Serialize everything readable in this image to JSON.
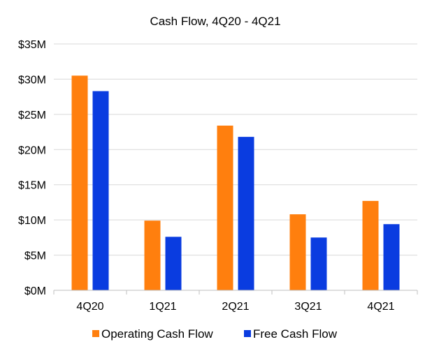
{
  "chart_data": {
    "type": "bar",
    "title": "Cash Flow, 4Q20 - 4Q21",
    "xlabel": "",
    "ylabel": "",
    "categories": [
      "4Q20",
      "1Q21",
      "2Q21",
      "3Q21",
      "4Q21"
    ],
    "series": [
      {
        "name": "Operating Cash Flow",
        "color": "#ff7f0e",
        "values": [
          30.5,
          9.9,
          23.4,
          10.8,
          12.7
        ]
      },
      {
        "name": "Free Cash Flow",
        "color": "#0a3ce0",
        "values": [
          28.3,
          7.6,
          21.8,
          7.5,
          9.4
        ]
      }
    ],
    "ylim": [
      0,
      35
    ],
    "yticks": [
      0,
      5,
      10,
      15,
      20,
      25,
      30,
      35
    ],
    "ytick_labels": [
      "$0M",
      "$5M",
      "$10M",
      "$15M",
      "$20M",
      "$25M",
      "$30M",
      "$35M"
    ],
    "units": "$M",
    "grid": true,
    "legend_position": "bottom"
  },
  "colors": {
    "gridline": "#d9d9d9",
    "axis": "#bfbfbf",
    "text": "#000000"
  }
}
